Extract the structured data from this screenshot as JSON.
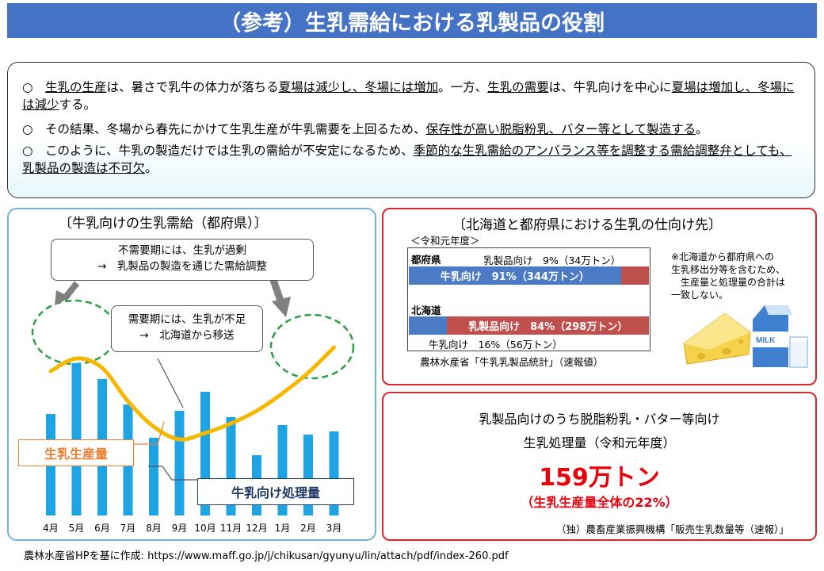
{
  "title": "（参考）生乳需給における乳製品の役割",
  "intro": {
    "p1": {
      "bullet": "○",
      "parts": [
        "生乳の生産",
        "は、暑さで乳牛の体力が落ちる",
        "夏場は減少し、冬場には増加",
        "。一方、",
        "生乳の需要",
        "は、牛乳向けを中心に",
        "夏場は増加し、冬場には減少",
        "する。"
      ]
    },
    "p2": {
      "bullet": "○",
      "parts": [
        "その結果、冬場から春先にかけて生乳生産が牛乳需要を上回るため、",
        "保存性が高い脱脂粉乳、バター等として製造する",
        "。"
      ]
    },
    "p3": {
      "bullet": "○",
      "parts": [
        "このように、牛乳の製造だけでは生乳の需給が不安定になるため、",
        "季節的な生乳需給のアンバランス等を調整する需給調整弁としても、乳製品の製造は不可欠",
        "。"
      ]
    }
  },
  "left_panel": {
    "title": "〔牛乳向けの生乳需給（都府県）〕",
    "callout_top": {
      "line1": "不需要期には、生乳が過剰",
      "line2": "→　乳製品の製造を通じた需給調整"
    },
    "callout_mid": {
      "line1": "需要期には、生乳が不足",
      "line2": "→　北海道から移送"
    },
    "label_production": "生乳生産量",
    "label_milk": "牛乳向け処理量",
    "colors": {
      "bar": "#1ea3e3",
      "line": "#f5b800",
      "production_label": "#ed7d31",
      "milk_label": "#1f3864",
      "dash": "#2e9e44",
      "arrow": "#808080"
    }
  },
  "chart_data": {
    "type": "bar",
    "title": "〔牛乳向けの生乳需給（都府県）〕",
    "categories": [
      "4月",
      "5月",
      "6月",
      "7月",
      "8月",
      "9月",
      "10月",
      "11月",
      "12月",
      "1月",
      "2月",
      "3月"
    ],
    "series": [
      {
        "name": "牛乳向け処理量",
        "type": "bar",
        "values": [
          64,
          96,
          86,
          70,
          49,
          66,
          78,
          62,
          38,
          57,
          51,
          53
        ]
      },
      {
        "name": "生乳生産量",
        "type": "line",
        "values": [
          85,
          93,
          87,
          66,
          50,
          42,
          46,
          52,
          60,
          71,
          84,
          100
        ]
      }
    ],
    "ylim": [
      0,
      110
    ],
    "grid": false
  },
  "right_top": {
    "title": "〔北海道と都府県における生乳の仕向け先〕",
    "period": "＜令和元年度＞",
    "tofuken": {
      "name": "都府県",
      "dairy_note": "乳製品向け　9%（34万トン）",
      "milk_label": "牛乳向け　91%（344万トン）",
      "milk_pct": 91,
      "dairy_pct": 9
    },
    "hokkaido": {
      "name": "北海道",
      "dairy_label": "乳製品向け　84%（298万トン）",
      "milk_note": "牛乳向け　16%（56万トン）",
      "milk_pct": 16,
      "dairy_pct": 84
    },
    "note": [
      "※北海道から都府県への",
      "生乳移出分等を含むため、",
      "　生産量と処理量の合計は",
      "一致しない。"
    ],
    "source": "農林水産省「牛乳乳製品統計」（速報値）",
    "milk_carton_text": "MILK",
    "colors": {
      "milk": "#4a7bc4",
      "dairy": "#c0504d"
    }
  },
  "right_bottom": {
    "line1": "乳製品向けのうち脱脂粉乳・バター等向け",
    "line2": "生乳処理量（令和元年度）",
    "big_value": "159万トン",
    "share": "（生乳生産量全体の22%）",
    "source": "（独）農畜産業振興機構「販売生乳数量等（速報）」"
  },
  "footer": "農林水産省HPを基に作成: https://www.maff.go.jp/j/chikusan/gyunyu/lin/attach/pdf/index-260.pdf"
}
